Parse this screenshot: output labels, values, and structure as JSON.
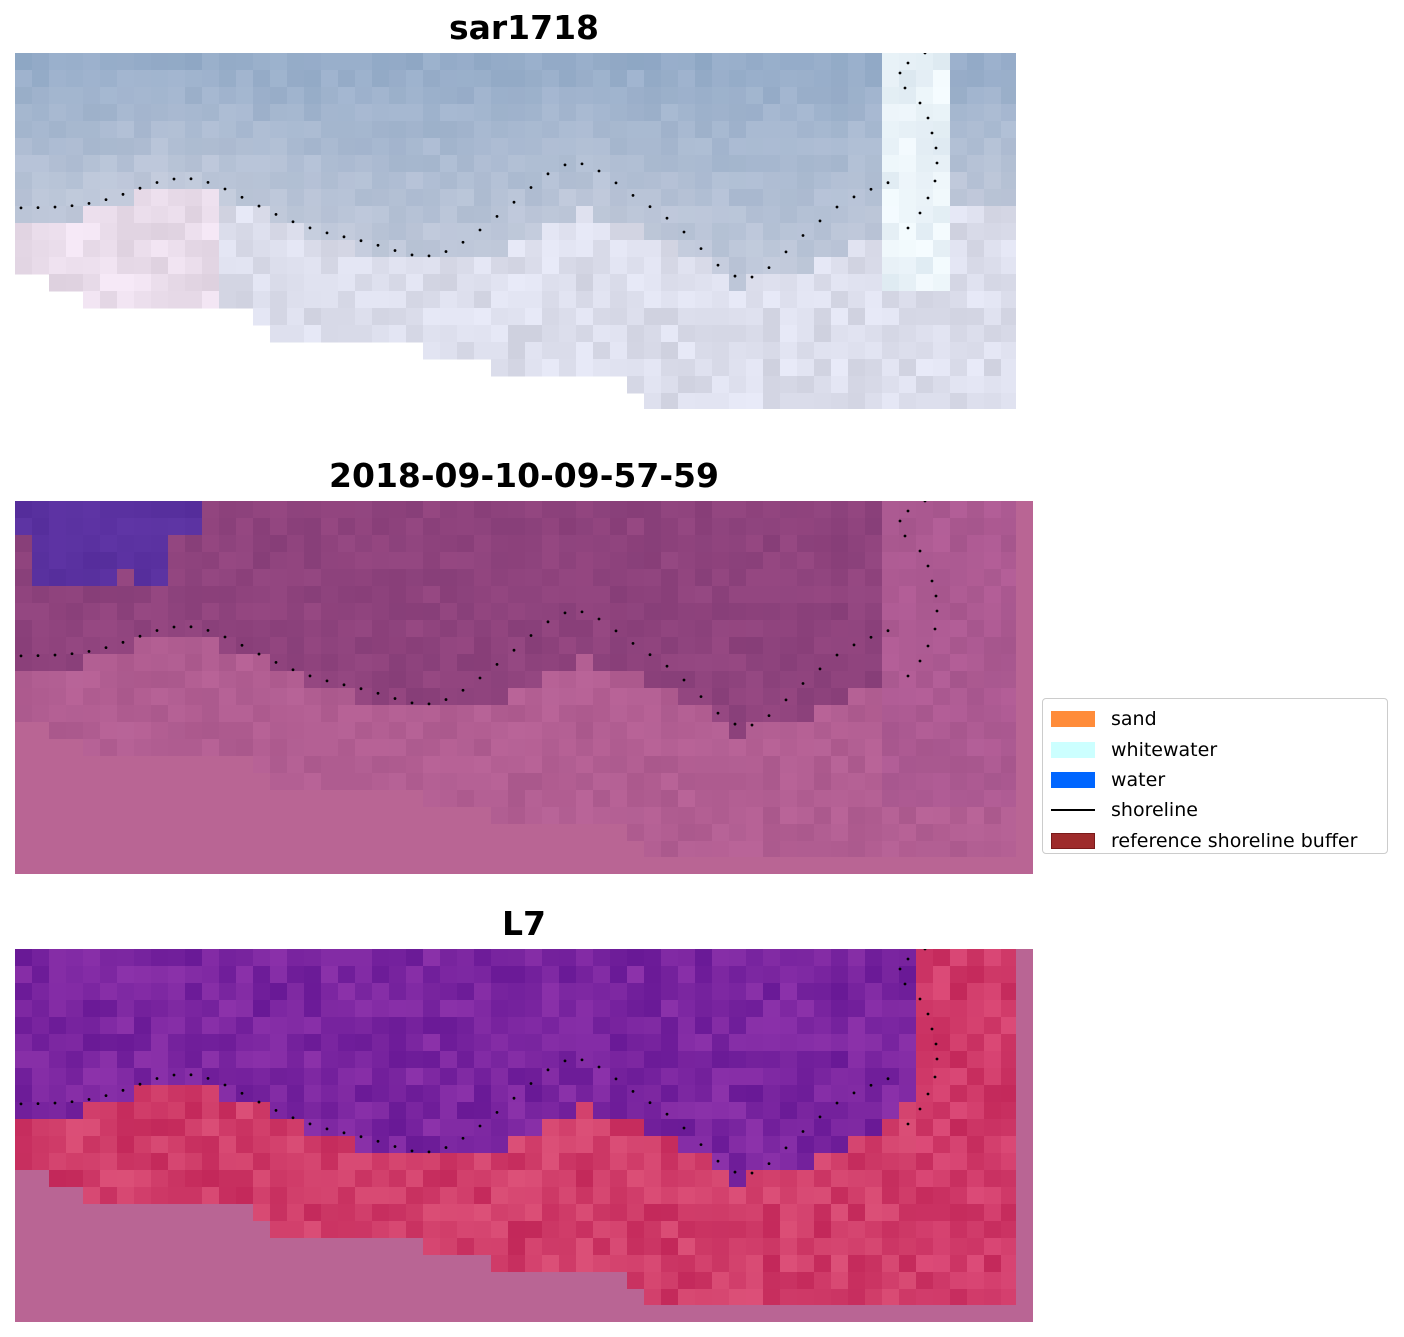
{
  "panels": [
    {
      "title": "sar1718",
      "style": "rgb"
    },
    {
      "title": "2018-09-10-09-57-59",
      "style": "classified"
    },
    {
      "title": "L7",
      "style": "index"
    }
  ],
  "legend": {
    "items": [
      {
        "label": "sand",
        "type": "patch",
        "color": "#ff8c3a"
      },
      {
        "label": "whitewater",
        "type": "patch",
        "color": "#ccffff"
      },
      {
        "label": "water",
        "type": "patch",
        "color": "#0066ff"
      },
      {
        "label": "shoreline",
        "type": "line",
        "color": "#000000"
      },
      {
        "label": "reference shoreline buffer",
        "type": "patch",
        "color": "#9e2b2b",
        "edge": "#7a1a1a"
      }
    ]
  }
}
